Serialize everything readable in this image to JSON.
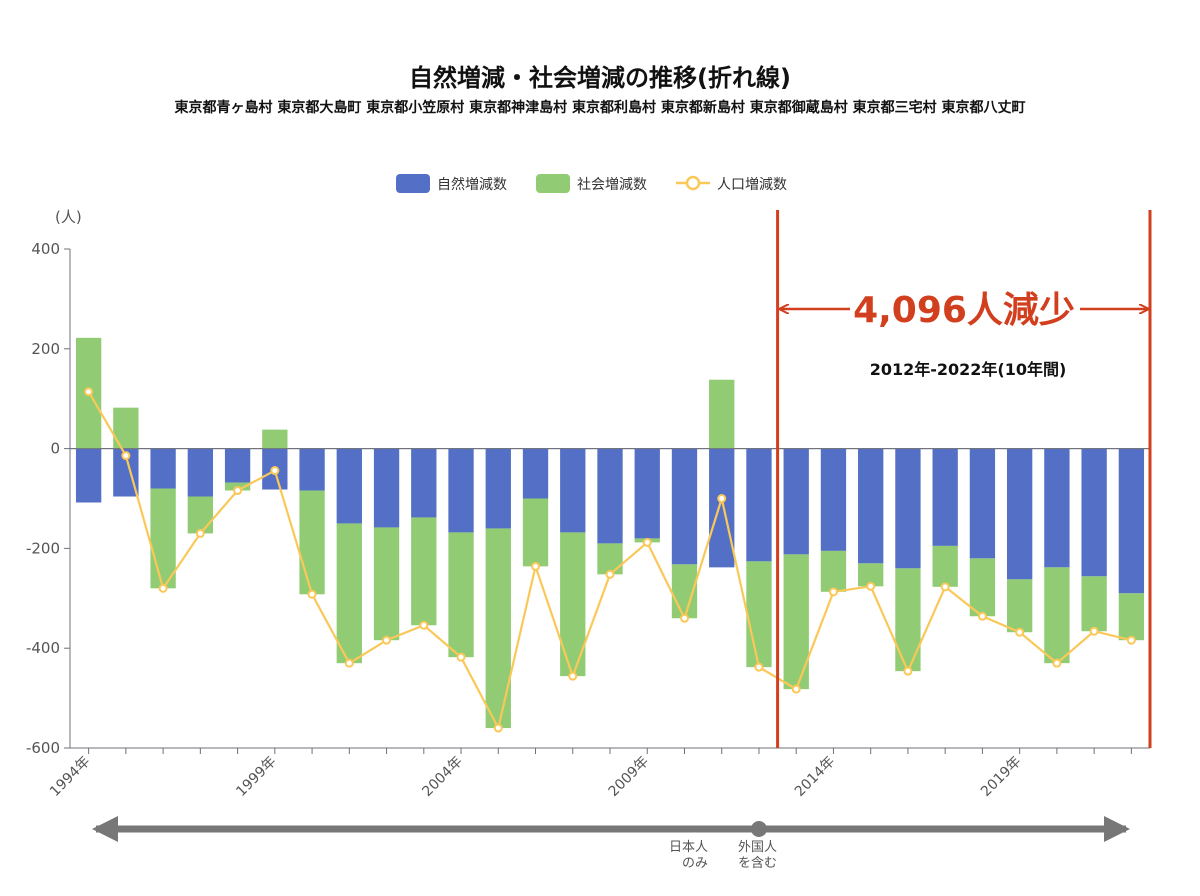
{
  "header": {
    "title": "自然増減・社会増減の推移(折れ線)",
    "subtitle": "東京都青ヶ島村 東京都大島町 東京都小笠原村 東京都神津島村 東京都利島村 東京都新島村 東京都御蔵島村 東京都三宅村 東京都八丈町"
  },
  "colors": {
    "natural": "#5470c6",
    "social": "#91cc75",
    "population": "#fac858",
    "annotation": "#d23f1e",
    "arrow": "#777777"
  },
  "annotation": {
    "big_text": "4,096人減少",
    "period_text": "2012年-2022年(10年間)",
    "start_year": 2012,
    "end_year": 2022
  },
  "timeline_notes": {
    "left_line1": "日本人",
    "left_line2": "のみ",
    "right_line1": "外国人",
    "right_line2": "を含む",
    "split_year": 2011.5
  },
  "chart_data": {
    "type": "bar",
    "stacked": true,
    "unit_label": "(人)",
    "ylim": [
      -600,
      400
    ],
    "yticks": [
      400,
      200,
      0,
      -200,
      -400,
      -600
    ],
    "grid": false,
    "legend": "top-center",
    "categories": [
      "1994年",
      "1995年",
      "1996年",
      "1997年",
      "1998年",
      "1999年",
      "2000年",
      "2001年",
      "2002年",
      "2003年",
      "2004年",
      "2005年",
      "2006年",
      "2007年",
      "2008年",
      "2009年",
      "2010年",
      "2011年",
      "2012年",
      "2013年",
      "2014年",
      "2015年",
      "2016年",
      "2017年",
      "2018年",
      "2019年",
      "2020年",
      "2021年",
      "2022年"
    ],
    "xtick_labels": [
      "1994年",
      "1999年",
      "2004年",
      "2009年",
      "2014年",
      "2019年"
    ],
    "series": [
      {
        "name": "自然増減数",
        "type": "bar",
        "values": [
          -108,
          -96,
          -80,
          -96,
          -68,
          -82,
          -84,
          -150,
          -158,
          -138,
          -168,
          -160,
          -100,
          -168,
          -190,
          -180,
          -232,
          -238,
          -226,
          -212,
          -205,
          -230,
          -240,
          -195,
          -220,
          -262,
          -238,
          -256,
          -290
        ]
      },
      {
        "name": "社会増減数",
        "type": "bar",
        "values": [
          222,
          82,
          -200,
          -74,
          -16,
          38,
          -208,
          -280,
          -226,
          -216,
          -250,
          -400,
          -136,
          -288,
          -62,
          -8,
          -108,
          138,
          -212,
          -270,
          -82,
          -46,
          -206,
          -82,
          -116,
          -106,
          -192,
          -110,
          -94
        ]
      },
      {
        "name": "人口増減数",
        "type": "line",
        "values": [
          114,
          -14,
          -280,
          -170,
          -84,
          -44,
          -292,
          -430,
          -384,
          -354,
          -418,
          -560,
          -236,
          -456,
          -252,
          -188,
          -340,
          -100,
          -438,
          -482,
          -287,
          -276,
          -446,
          -277,
          -336,
          -368,
          -430,
          -366,
          -384
        ]
      }
    ]
  }
}
